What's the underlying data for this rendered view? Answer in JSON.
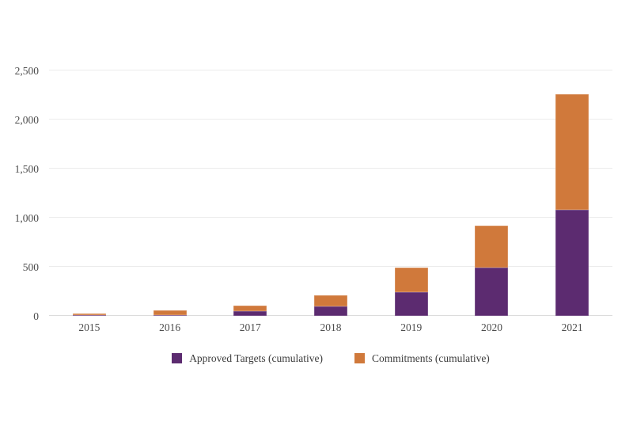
{
  "chart_data": {
    "type": "bar",
    "stacked": true,
    "title": "",
    "xlabel": "",
    "ylabel": "",
    "categories": [
      "2015",
      "2016",
      "2017",
      "2018",
      "2019",
      "2020",
      "2021"
    ],
    "series": [
      {
        "name": "Approved Targets (cumulative)",
        "color": "#5c2b70",
        "values": [
          5,
          10,
          45,
          95,
          245,
          490,
          1080
        ]
      },
      {
        "name": "Commitments (cumulative)",
        "color": "#d0793b",
        "values": [
          20,
          45,
          60,
          115,
          250,
          430,
          1180
        ]
      }
    ],
    "totals": [
      25,
      55,
      105,
      210,
      495,
      920,
      2260
    ],
    "ylim": [
      0,
      2500
    ],
    "yticks": [
      0,
      500,
      1000,
      1500,
      2000,
      2500
    ],
    "ytick_labels": [
      "0",
      "500",
      "1,000",
      "1,500",
      "2,000",
      "2,500"
    ],
    "grid": "horizontal",
    "legend_position": "bottom"
  },
  "style": {
    "gridline_color": "#ececec",
    "zero_line_color": "#dcdcdc",
    "axis_text_color": "#4d4d4d",
    "legend_text_color": "#3c3c3c",
    "background_color": "#ffffff"
  }
}
